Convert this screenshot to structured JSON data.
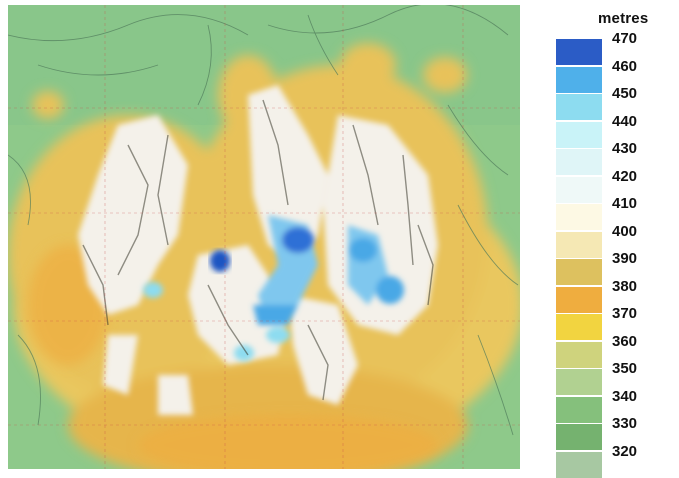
{
  "legend": {
    "title": "metres",
    "entries": [
      {
        "value": "470",
        "color": "#2b5cc6"
      },
      {
        "value": "460",
        "color": "#4fb0ea"
      },
      {
        "value": "450",
        "color": "#8ddcf0"
      },
      {
        "value": "440",
        "color": "#c9f3f8"
      },
      {
        "value": "430",
        "color": "#dff5f7"
      },
      {
        "value": "420",
        "color": "#eff9f8"
      },
      {
        "value": "410",
        "color": "#fdf9e4"
      },
      {
        "value": "400",
        "color": "#f5e8b4"
      },
      {
        "value": "390",
        "color": "#ddc15f"
      },
      {
        "value": "380",
        "color": "#efad3f"
      },
      {
        "value": "370",
        "color": "#f2d440"
      },
      {
        "value": "360",
        "color": "#cfd37d"
      },
      {
        "value": "350",
        "color": "#b1d191"
      },
      {
        "value": "340",
        "color": "#85c07c"
      },
      {
        "value": "330",
        "color": "#75b26f"
      },
      {
        "value": "320",
        "color": "#a7c8a2"
      }
    ]
  },
  "map": {
    "colors": {
      "lowland": "#8ec98a",
      "midland": "#e8c25a",
      "ridge": "#f4f1ea",
      "summit": "#4aa8e6",
      "peak": "#1f55c2",
      "stream": "#4f7a5a",
      "graticule": "#c94a4a"
    }
  }
}
